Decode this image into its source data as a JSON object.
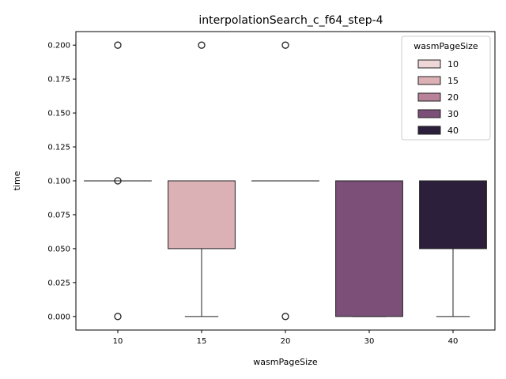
{
  "chart_data": {
    "type": "box",
    "title": "interpolationSearch_c_f64_step-4",
    "xlabel": "wasmPageSize",
    "ylabel": "time",
    "ylim": [
      -0.01,
      0.21
    ],
    "yticks": [
      0.0,
      0.025,
      0.05,
      0.075,
      0.1,
      0.125,
      0.15,
      0.175,
      0.2
    ],
    "ytick_labels": [
      "0.000",
      "0.025",
      "0.050",
      "0.075",
      "0.100",
      "0.125",
      "0.150",
      "0.175",
      "0.200"
    ],
    "categories": [
      "10",
      "15",
      "20",
      "30",
      "40"
    ],
    "boxes": [
      {
        "category": "10",
        "q1": 0.1,
        "median": 0.1,
        "q3": 0.1,
        "whisker_low": 0.1,
        "whisker_high": 0.1,
        "outliers": [
          0.2,
          0.1,
          0.0
        ],
        "color": "#f0d7d7"
      },
      {
        "category": "15",
        "q1": 0.05,
        "median": 0.1,
        "q3": 0.1,
        "whisker_low": 0.0,
        "whisker_high": 0.1,
        "outliers": [
          0.2
        ],
        "color": "#dcb1b5"
      },
      {
        "category": "20",
        "q1": 0.1,
        "median": 0.1,
        "q3": 0.1,
        "whisker_low": 0.1,
        "whisker_high": 0.1,
        "outliers": [
          0.2,
          0.0
        ],
        "color": "#b8829a"
      },
      {
        "category": "30",
        "q1": 0.0,
        "median": 0.1,
        "q3": 0.1,
        "whisker_low": 0.0,
        "whisker_high": 0.1,
        "outliers": [],
        "color": "#7b4f77"
      },
      {
        "category": "40",
        "q1": 0.05,
        "median": 0.1,
        "q3": 0.1,
        "whisker_low": 0.0,
        "whisker_high": 0.1,
        "outliers": [],
        "color": "#2c1f3b"
      }
    ],
    "legend": {
      "title": "wasmPageSize",
      "placement": "top-right",
      "entries": [
        {
          "label": "10",
          "color": "#f0d7d7"
        },
        {
          "label": "15",
          "color": "#dcb1b5"
        },
        {
          "label": "20",
          "color": "#b8829a"
        },
        {
          "label": "30",
          "color": "#7b4f77"
        },
        {
          "label": "40",
          "color": "#2c1f3b"
        }
      ]
    },
    "grid": false
  }
}
